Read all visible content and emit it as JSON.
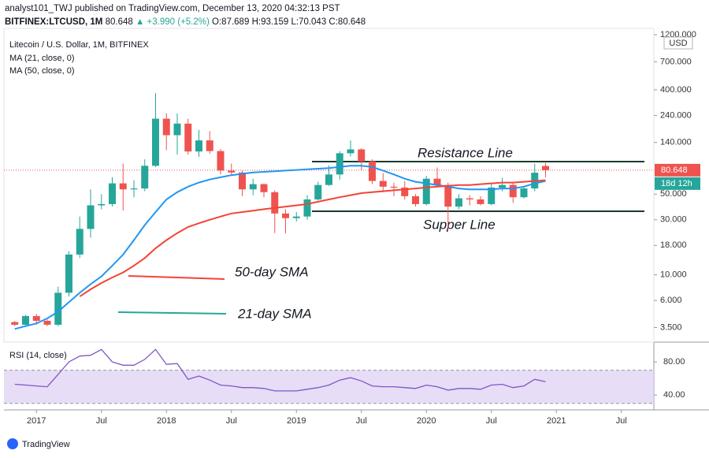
{
  "header": {
    "published": "analyst101_TWJ published on TradingView.com, December 13, 2020 04:32:13 PST",
    "symbol": "BITFINEX:LTCUSD, 1M",
    "last": "80.648",
    "change": "▲ +3.990 (+5.2%)",
    "ohlc": [
      "O:87.689",
      "H:93.159",
      "L:70.043",
      "C:80.648"
    ]
  },
  "footer": {
    "logo": "TradingView"
  },
  "chart_data": [
    {
      "type": "candlestick",
      "title": "Litecoin / U.S. Dollar, 1M, BITFINEX",
      "x": [
        "2016-11",
        "2016-12",
        "2017-01",
        "2017-02",
        "2017-03",
        "2017-04",
        "2017-05",
        "2017-06",
        "2017-07",
        "2017-08",
        "2017-09",
        "2017-10",
        "2017-11",
        "2017-12",
        "2018-01",
        "2018-02",
        "2018-03",
        "2018-04",
        "2018-05",
        "2018-06",
        "2018-07",
        "2018-08",
        "2018-09",
        "2018-10",
        "2018-11",
        "2018-12",
        "2019-01",
        "2019-02",
        "2019-03",
        "2019-04",
        "2019-05",
        "2019-06",
        "2019-07",
        "2019-08",
        "2019-09",
        "2019-10",
        "2019-11",
        "2019-12",
        "2020-01",
        "2020-02",
        "2020-03",
        "2020-04",
        "2020-05",
        "2020-06",
        "2020-07",
        "2020-08",
        "2020-09",
        "2020-10",
        "2020-11",
        "2020-12"
      ],
      "open": [
        3.9,
        3.7,
        4.4,
        4.0,
        3.7,
        7.0,
        15,
        25,
        40,
        41,
        62,
        55,
        56,
        88,
        225,
        162,
        204,
        117,
        146,
        118,
        80,
        77,
        55,
        61,
        52,
        34,
        31,
        32,
        45,
        60,
        74,
        113,
        122,
        96,
        65,
        58,
        57,
        48,
        41,
        68,
        60,
        39,
        46,
        45,
        41,
        57,
        60,
        47,
        56,
        87.689
      ],
      "high": [
        4.0,
        4.5,
        4.6,
        4.1,
        7.9,
        16,
        32,
        55,
        50,
        70,
        92,
        66,
        100,
        375,
        250,
        250,
        225,
        180,
        175,
        123,
        92,
        80,
        68,
        62,
        54,
        37,
        35,
        49,
        64,
        89,
        118,
        146,
        125,
        100,
        76,
        63,
        65,
        50,
        72,
        85,
        63,
        50,
        49,
        48,
        62,
        69,
        62,
        59,
        92,
        93.159
      ],
      "low": [
        3.6,
        3.6,
        3.7,
        3.6,
        3.6,
        6.5,
        14,
        21,
        37,
        39,
        36,
        47,
        53,
        86,
        120,
        110,
        110,
        105,
        112,
        74,
        74,
        48,
        49,
        47,
        23,
        23,
        29,
        30,
        44,
        59,
        67,
        106,
        80,
        61,
        52,
        48,
        45,
        39,
        40,
        57,
        25,
        37,
        40,
        40,
        40,
        53,
        42,
        46,
        53,
        70.043
      ],
      "close": [
        3.7,
        4.4,
        4.0,
        3.7,
        7.0,
        15,
        25,
        40,
        41,
        62,
        55,
        56,
        88,
        225,
        162,
        204,
        117,
        146,
        118,
        80,
        77,
        55,
        61,
        52,
        34,
        31,
        32,
        45,
        60,
        74,
        113,
        122,
        96,
        65,
        58,
        57,
        48,
        41,
        68,
        60,
        39,
        46,
        45,
        41,
        57,
        60,
        47,
        56,
        76.658,
        80.648
      ],
      "up_color": "#26a69a",
      "down_color": "#ef5350",
      "series": [
        {
          "name": "MA (21, close, 0)",
          "color": "#2196f3",
          "values": [
            3.4,
            3.6,
            3.8,
            4.2,
            4.8,
            5.8,
            7.0,
            8.3,
            9.7,
            12,
            15,
            20,
            27,
            35,
            45,
            52,
            58,
            63,
            67,
            70,
            73,
            75,
            77,
            78,
            79,
            80,
            81,
            82,
            83,
            84,
            86,
            88,
            88,
            86,
            80,
            74,
            68,
            64,
            62,
            60,
            58,
            56,
            55,
            55,
            55,
            56,
            56,
            58,
            62,
            65
          ]
        },
        {
          "name": "MA (50, close, 0)",
          "color": "#f44336",
          "values": [
            null,
            null,
            null,
            null,
            null,
            null,
            6.5,
            7.5,
            8.5,
            9.5,
            10.5,
            12,
            14,
            17,
            20,
            23,
            26,
            28,
            30,
            32,
            34,
            35,
            36,
            37,
            38,
            39,
            40,
            41,
            43,
            45,
            47,
            49,
            51,
            52,
            53,
            54,
            55,
            56,
            57,
            58,
            59,
            60,
            60,
            61,
            62,
            63,
            63,
            64,
            65,
            66
          ]
        }
      ],
      "log_scale": true,
      "ylim": [
        2.7,
        1320
      ],
      "yticks": [
        {
          "value": 1200,
          "label": "1200.000"
        },
        {
          "value": 700,
          "label": "700.000"
        },
        {
          "value": 400,
          "label": "400.000"
        },
        {
          "value": 240,
          "label": "240.000"
        },
        {
          "value": 140,
          "label": "140.000"
        },
        {
          "value": 50,
          "label": "50.000"
        },
        {
          "value": 30,
          "label": "30.000"
        },
        {
          "value": 18,
          "label": "18.000"
        },
        {
          "value": 10,
          "label": "10.000"
        },
        {
          "value": 6,
          "label": "6.000"
        },
        {
          "value": 3.5,
          "label": "3.500"
        }
      ],
      "xlim": [
        "2016-10",
        "2021-10"
      ],
      "xticks": [
        {
          "value": "2017-01",
          "label": "2017"
        },
        {
          "value": "2017-07",
          "label": "Jul"
        },
        {
          "value": "2018-01",
          "label": "2018"
        },
        {
          "value": "2018-07",
          "label": "Jul"
        },
        {
          "value": "2019-01",
          "label": "2019"
        },
        {
          "value": "2019-07",
          "label": "Jul"
        },
        {
          "value": "2020-01",
          "label": "2020"
        },
        {
          "value": "2020-07",
          "label": "Jul"
        },
        {
          "value": "2021-01",
          "label": "2021"
        },
        {
          "value": "2021-07",
          "label": "Jul"
        }
      ],
      "currency": "USD",
      "countdown": "18d 12h",
      "annotations": [
        "Resistance Line",
        "Supper Line",
        "50-day SMA",
        "21-day SMA"
      ]
    },
    {
      "type": "line",
      "title": "RSI (14, close)",
      "color": "#7e57c2",
      "values": [
        53,
        52,
        51,
        50,
        65,
        80,
        87,
        88,
        95,
        80,
        76,
        76,
        83,
        95,
        77,
        78,
        59,
        63,
        58,
        52,
        51,
        49,
        49,
        48,
        45,
        45,
        45,
        47,
        49,
        52,
        58,
        61,
        57,
        51,
        50,
        50,
        49,
        48,
        52,
        50,
        46,
        48,
        48,
        47,
        52,
        53,
        49,
        51,
        59,
        56
      ],
      "ylim": [
        24,
        101
      ],
      "yticks": [
        {
          "value": 80,
          "label": "80.00"
        },
        {
          "value": 40,
          "label": "40.00"
        }
      ],
      "band": [
        30,
        70
      ],
      "band_color": "#e1d5f5"
    }
  ]
}
